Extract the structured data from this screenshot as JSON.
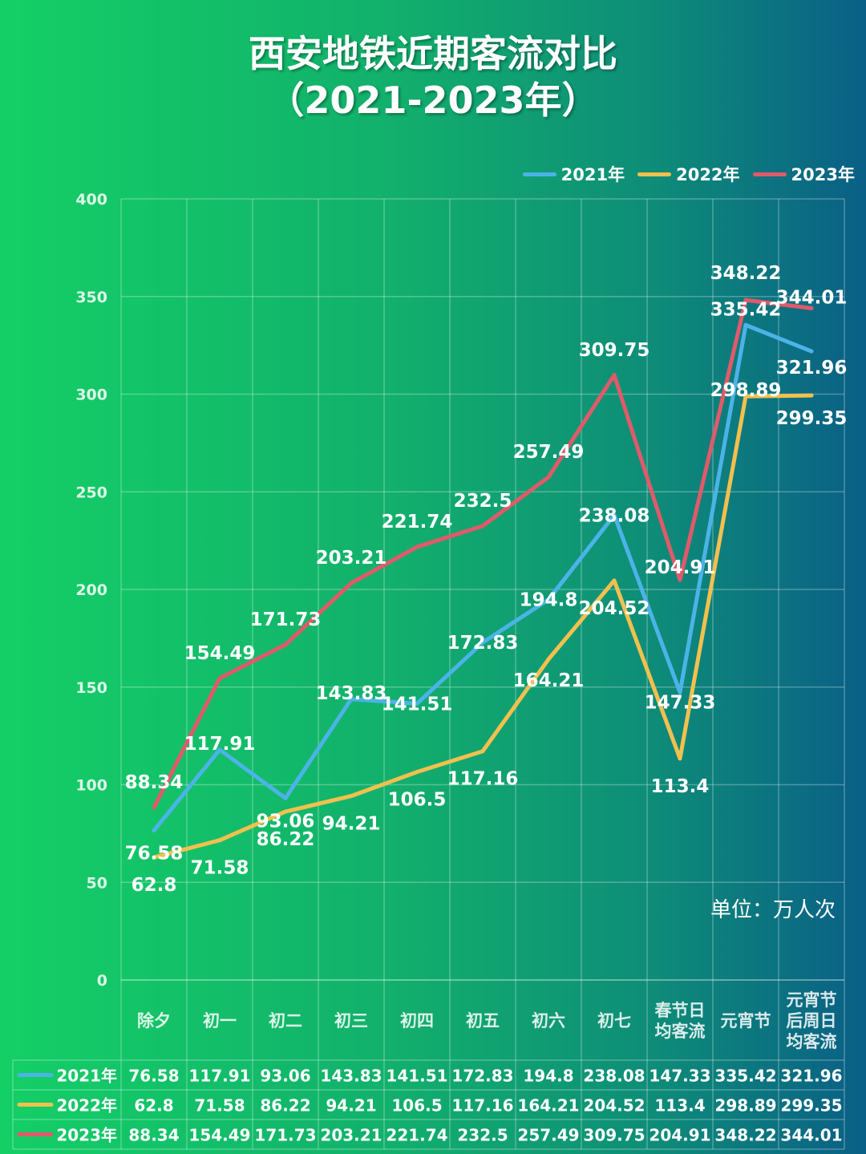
{
  "title_line1": "西安地铁近期客流对比",
  "title_line2": "（2021-2023年）",
  "unit_label": "单位：万人次",
  "chart_data": {
    "type": "line",
    "title": "西安地铁近期客流对比（2021-2023年）",
    "categories": [
      "除夕",
      "初一",
      "初二",
      "初三",
      "初四",
      "初五",
      "初六",
      "初七",
      "春节日均客流",
      "元宵节",
      "元宵节后周日均客流"
    ],
    "category_lines": [
      [
        "除夕"
      ],
      [
        "初一"
      ],
      [
        "初二"
      ],
      [
        "初三"
      ],
      [
        "初四"
      ],
      [
        "初五"
      ],
      [
        "初六"
      ],
      [
        "初七"
      ],
      [
        "春节日",
        "均客流"
      ],
      [
        "元宵节"
      ],
      [
        "元宵节",
        "后周日",
        "均客流"
      ]
    ],
    "ylim": [
      0,
      400
    ],
    "yticks": [
      0,
      50,
      100,
      150,
      200,
      250,
      300,
      350,
      400
    ],
    "grid": true,
    "legend_position": "top-right",
    "series": [
      {
        "name": "2021年",
        "color": "#4cb3e8",
        "values": [
          76.58,
          117.91,
          93.06,
          143.83,
          141.51,
          172.83,
          194.8,
          238.08,
          147.33,
          335.42,
          321.96
        ]
      },
      {
        "name": "2022年",
        "color": "#f2c04e",
        "values": [
          62.8,
          71.58,
          86.22,
          94.21,
          106.5,
          117.16,
          164.21,
          204.52,
          113.4,
          298.89,
          299.35
        ]
      },
      {
        "name": "2023年",
        "color": "#e05a6a",
        "values": [
          88.34,
          154.49,
          171.73,
          203.21,
          221.74,
          232.5,
          257.49,
          309.75,
          204.91,
          348.22,
          344.01
        ]
      }
    ]
  }
}
